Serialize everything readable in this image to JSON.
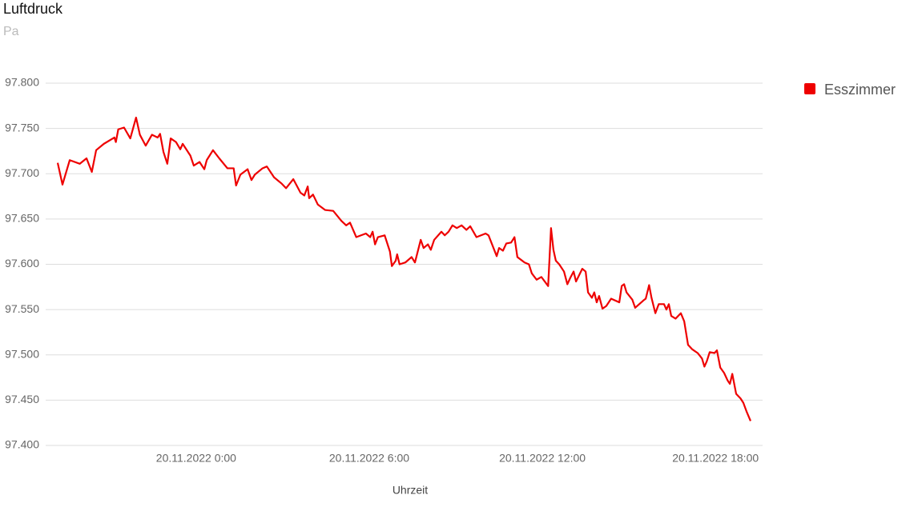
{
  "chart_data": {
    "type": "line",
    "title": "Luftdruck",
    "subtitle": "Pa",
    "x_label": "Uhrzeit",
    "grid": true,
    "xlim": [
      "19.11.2022 18:47",
      "20.11.2022 19:38"
    ],
    "xticks": [
      "20.11.2022 0:00",
      "20.11.2022 6:00",
      "20.11.2022 12:00",
      "20.11.2022 18:00"
    ],
    "ylim": [
      97400,
      97800
    ],
    "yticks": [
      {
        "value": 97400,
        "label": "97.400"
      },
      {
        "value": 97450,
        "label": "97.450"
      },
      {
        "value": 97500,
        "label": "97.500"
      },
      {
        "value": 97550,
        "label": "97.550"
      },
      {
        "value": 97600,
        "label": "97.600"
      },
      {
        "value": 97650,
        "label": "97.650"
      },
      {
        "value": 97700,
        "label": "97.700"
      },
      {
        "value": 97750,
        "label": "97.750"
      },
      {
        "value": 97800,
        "label": "97.800"
      }
    ],
    "x": [
      "19.11.2022 19:12",
      "19.11.2022 19:22",
      "19.11.2022 19:37",
      "19.11.2022 19:58",
      "19.11.2022 20:12",
      "19.11.2022 20:23",
      "19.11.2022 20:32",
      "19.11.2022 20:48",
      "19.11.2022 21:10",
      "19.11.2022 21:13",
      "19.11.2022 21:18",
      "19.11.2022 21:30",
      "19.11.2022 21:43",
      "19.11.2022 21:55",
      "19.11.2022 22:03",
      "19.11.2022 22:15",
      "19.11.2022 22:28",
      "19.11.2022 22:40",
      "19.11.2022 22:45",
      "19.11.2022 22:52",
      "19.11.2022 23:00",
      "19.11.2022 23:07",
      "19.11.2022 23:18",
      "19.11.2022 23:27",
      "19.11.2022 23:32",
      "19.11.2022 23:48",
      "19.11.2022 23:55",
      "20.11.2022 0:07",
      "20.11.2022 0:17",
      "20.11.2022 0:22",
      "20.11.2022 0:35",
      "20.11.2022 0:48",
      "20.11.2022 1:05",
      "20.11.2022 1:18",
      "20.11.2022 1:23",
      "20.11.2022 1:32",
      "20.11.2022 1:47",
      "20.11.2022 1:55",
      "20.11.2022 2:02",
      "20.11.2022 2:18",
      "20.11.2022 2:27",
      "20.11.2022 2:42",
      "20.11.2022 2:58",
      "20.11.2022 3:07",
      "20.11.2022 3:22",
      "20.11.2022 3:37",
      "20.11.2022 3:45",
      "20.11.2022 3:52",
      "20.11.2022 3:55",
      "20.11.2022 4:03",
      "20.11.2022 4:13",
      "20.11.2022 4:28",
      "20.11.2022 4:45",
      "20.11.2022 5:02",
      "20.11.2022 5:12",
      "20.11.2022 5:20",
      "20.11.2022 5:33",
      "20.11.2022 5:53",
      "20.11.2022 6:02",
      "20.11.2022 6:07",
      "20.11.2022 6:12",
      "20.11.2022 6:18",
      "20.11.2022 6:32",
      "20.11.2022 6:43",
      "20.11.2022 6:47",
      "20.11.2022 6:55",
      "20.11.2022 6:58",
      "20.11.2022 7:03",
      "20.11.2022 7:15",
      "20.11.2022 7:28",
      "20.11.2022 7:35",
      "20.11.2022 7:47",
      "20.11.2022 7:53",
      "20.11.2022 8:02",
      "20.11.2022 8:08",
      "20.11.2022 8:15",
      "20.11.2022 8:30",
      "20.11.2022 8:37",
      "20.11.2022 8:45",
      "20.11.2022 8:53",
      "20.11.2022 9:02",
      "20.11.2022 9:12",
      "20.11.2022 9:22",
      "20.11.2022 9:30",
      "20.11.2022 9:43",
      "20.11.2022 10:02",
      "20.11.2022 10:08",
      "20.11.2022 10:25",
      "20.11.2022 10:30",
      "20.11.2022 10:38",
      "20.11.2022 10:45",
      "20.11.2022 10:55",
      "20.11.2022 11:02",
      "20.11.2022 11:08",
      "20.11.2022 11:23",
      "20.11.2022 11:32",
      "20.11.2022 11:38",
      "20.11.2022 11:48",
      "20.11.2022 11:58",
      "20.11.2022 12:12",
      "20.11.2022 12:18",
      "20.11.2022 12:23",
      "20.11.2022 12:28",
      "20.11.2022 12:35",
      "20.11.2022 12:45",
      "20.11.2022 12:52",
      "20.11.2022 12:58",
      "20.11.2022 13:05",
      "20.11.2022 13:10",
      "20.11.2022 13:23",
      "20.11.2022 13:30",
      "20.11.2022 13:35",
      "20.11.2022 13:43",
      "20.11.2022 13:48",
      "20.11.2022 13:53",
      "20.11.2022 13:58",
      "20.11.2022 14:05",
      "20.11.2022 14:13",
      "20.11.2022 14:23",
      "20.11.2022 14:40",
      "20.11.2022 14:45",
      "20.11.2022 14:50",
      "20.11.2022 14:55",
      "20.11.2022 15:07",
      "20.11.2022 15:13",
      "20.11.2022 15:30",
      "20.11.2022 15:35",
      "20.11.2022 15:42",
      "20.11.2022 15:47",
      "20.11.2022 15:55",
      "20.11.2022 16:02",
      "20.11.2022 16:13",
      "20.11.2022 16:18",
      "20.11.2022 16:23",
      "20.11.2022 16:28",
      "20.11.2022 16:37",
      "20.11.2022 16:48",
      "20.11.2022 16:55",
      "20.11.2022 17:03",
      "20.11.2022 17:12",
      "20.11.2022 17:23",
      "20.11.2022 17:32",
      "20.11.2022 17:37",
      "20.11.2022 17:42",
      "20.11.2022 17:48",
      "20.11.2022 17:58",
      "20.11.2022 18:03",
      "20.11.2022 18:10",
      "20.11.2022 18:18",
      "20.11.2022 18:25",
      "20.11.2022 18:30",
      "20.11.2022 18:35",
      "20.11.2022 18:43",
      "20.11.2022 18:52",
      "20.11.2022 18:58",
      "20.11.2022 19:05",
      "20.11.2022 19:13"
    ],
    "series": [
      {
        "name": "Esszimmer",
        "color": "#ee0000",
        "values": [
          97712,
          97688,
          97715,
          97711,
          97717,
          97702,
          97726,
          97733,
          97740,
          97735,
          97749,
          97751,
          97739,
          97762,
          97743,
          97731,
          97743,
          97740,
          97744,
          97724,
          97711,
          97739,
          97735,
          97727,
          97733,
          97720,
          97709,
          97713,
          97705,
          97715,
          97726,
          97717,
          97706,
          97706,
          97687,
          97699,
          97705,
          97693,
          97699,
          97706,
          97708,
          97696,
          97689,
          97684,
          97694,
          97679,
          97676,
          97686,
          97673,
          97677,
          97666,
          97660,
          97659,
          97648,
          97643,
          97646,
          97630,
          97634,
          97630,
          97636,
          97622,
          97630,
          97632,
          97614,
          97598,
          97604,
          97611,
          97600,
          97602,
          97608,
          97602,
          97627,
          97618,
          97622,
          97616,
          97627,
          97636,
          97632,
          97636,
          97643,
          97640,
          97643,
          97638,
          97642,
          97630,
          97634,
          97632,
          97609,
          97618,
          97615,
          97623,
          97624,
          97630,
          97608,
          97602,
          97600,
          97590,
          97583,
          97586,
          97576,
          97640,
          97616,
          97604,
          97600,
          97592,
          97578,
          97585,
          97592,
          97581,
          97595,
          97592,
          97569,
          97563,
          97569,
          97558,
          97565,
          97551,
          97554,
          97562,
          97558,
          97576,
          97578,
          97569,
          97561,
          97552,
          97560,
          97562,
          97577,
          97563,
          97546,
          97556,
          97556,
          97550,
          97556,
          97543,
          97540,
          97546,
          97537,
          97511,
          97506,
          97502,
          97496,
          97487,
          97493,
          97503,
          97502,
          97505,
          97486,
          97480,
          97472,
          97468,
          97479,
          97457,
          97452,
          97447,
          97437,
          97427
        ]
      }
    ]
  }
}
